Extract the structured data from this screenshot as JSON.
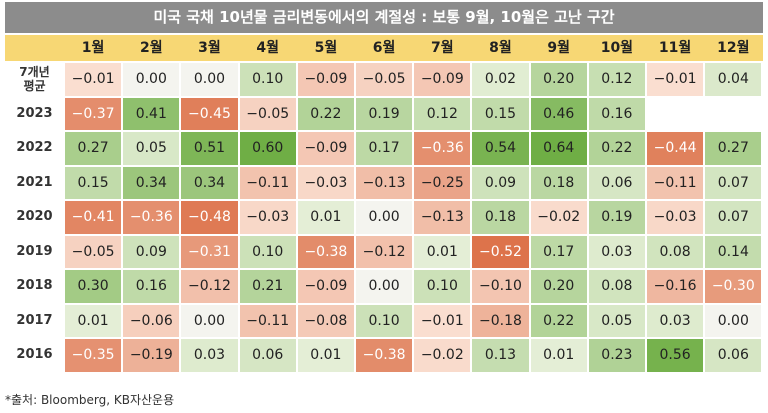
{
  "title": "미국 국채 10년물 금리변동에서의 계절성 : 보통 9월, 10월은 고난 구간",
  "source": "*출처: Bloomberg, KB자산운용",
  "chart_data": {
    "type": "heatmap",
    "title": "미국 국채 10년물 금리변동에서의 계절성 : 보통 9월, 10월은 고난 구간",
    "columns": [
      "1월",
      "2월",
      "3월",
      "4월",
      "5월",
      "6월",
      "7월",
      "8월",
      "9월",
      "10월",
      "11월",
      "12월"
    ],
    "rows": [
      {
        "label": "7개년\n평균",
        "values": [
          -0.01,
          0.0,
          0.0,
          0.1,
          -0.09,
          -0.05,
          -0.09,
          0.02,
          0.2,
          0.12,
          -0.01,
          0.04
        ]
      },
      {
        "label": "2023",
        "values": [
          -0.37,
          0.41,
          -0.45,
          -0.05,
          0.22,
          0.19,
          0.12,
          0.15,
          0.46,
          0.16,
          null,
          null
        ]
      },
      {
        "label": "2022",
        "values": [
          0.27,
          0.05,
          0.51,
          0.6,
          -0.09,
          0.17,
          -0.36,
          0.54,
          0.64,
          0.22,
          -0.44,
          0.27
        ]
      },
      {
        "label": "2021",
        "values": [
          0.15,
          0.34,
          0.34,
          -0.11,
          -0.03,
          -0.13,
          -0.25,
          0.09,
          0.18,
          0.06,
          -0.11,
          0.07
        ]
      },
      {
        "label": "2020",
        "values": [
          -0.41,
          -0.36,
          -0.48,
          -0.03,
          0.01,
          0.0,
          -0.13,
          0.18,
          -0.02,
          0.19,
          -0.03,
          0.07
        ]
      },
      {
        "label": "2019",
        "values": [
          -0.05,
          0.09,
          -0.31,
          0.1,
          -0.38,
          -0.12,
          0.01,
          -0.52,
          0.17,
          0.03,
          0.08,
          0.14
        ]
      },
      {
        "label": "2018",
        "values": [
          0.3,
          0.16,
          -0.12,
          0.21,
          -0.09,
          0.0,
          0.1,
          -0.1,
          0.2,
          0.08,
          -0.16,
          -0.3
        ]
      },
      {
        "label": "2017",
        "values": [
          0.01,
          -0.06,
          0.0,
          -0.11,
          -0.08,
          0.1,
          -0.01,
          -0.18,
          0.22,
          0.05,
          0.03,
          0.0
        ]
      },
      {
        "label": "2016",
        "values": [
          -0.35,
          -0.19,
          0.03,
          0.06,
          0.01,
          -0.38,
          -0.02,
          0.13,
          0.01,
          0.23,
          0.56,
          0.06
        ]
      }
    ],
    "colors": {
      "positive_strong": "#6fae45",
      "positive_light": "#e9f1dc",
      "negative_strong": "#d9653a",
      "negative_light": "#fbe3d6",
      "neutral": "#f4f4ef",
      "header_bg": "#f7d774",
      "title_bg": "#8c8c8c"
    }
  }
}
